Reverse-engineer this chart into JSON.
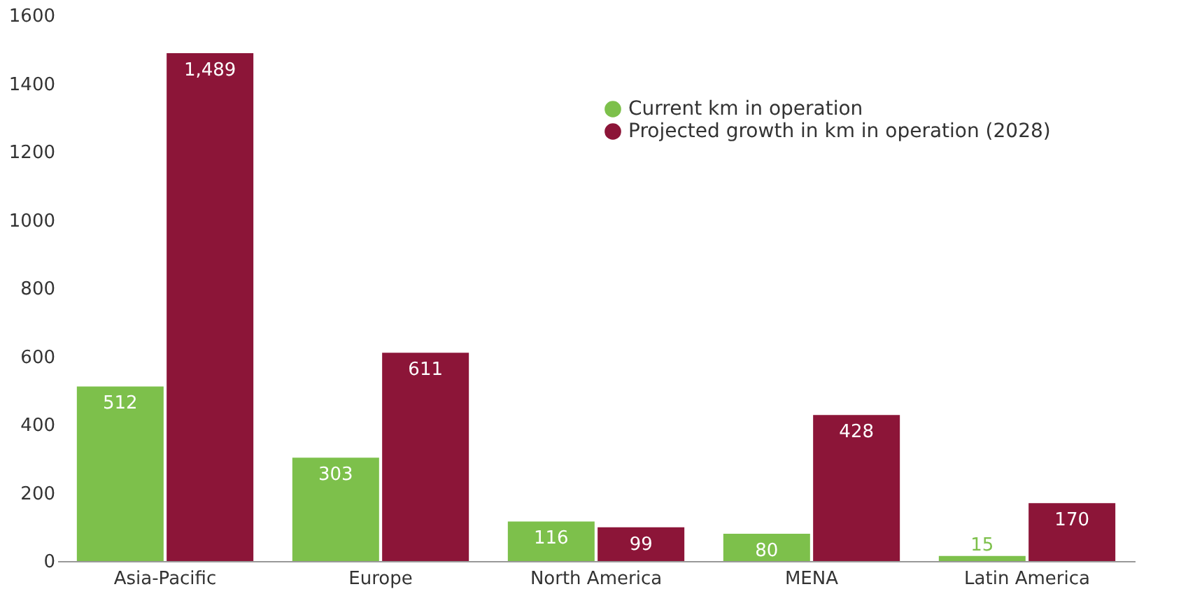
{
  "chart_data": {
    "type": "bar",
    "categories": [
      "Asia-Pacific",
      "Europe",
      "North America",
      "MENA",
      "Latin America"
    ],
    "series": [
      {
        "name": "Current km in operation",
        "color": "#7dc04b",
        "values": [
          512,
          303,
          116,
          80,
          15
        ],
        "value_labels": [
          "512",
          "303",
          "116",
          "80",
          "15"
        ]
      },
      {
        "name": "Projected growth in km in operation (2028)",
        "color": "#8c1538",
        "values": [
          1489,
          611,
          99,
          428,
          170
        ],
        "value_labels": [
          "1,489",
          "611",
          "99",
          "428",
          "170"
        ]
      }
    ],
    "ylim": [
      0,
      1600
    ],
    "yticks": [
      0,
      200,
      400,
      600,
      800,
      1000,
      1200,
      1400,
      1600
    ],
    "grid": false,
    "legend": "top right"
  }
}
